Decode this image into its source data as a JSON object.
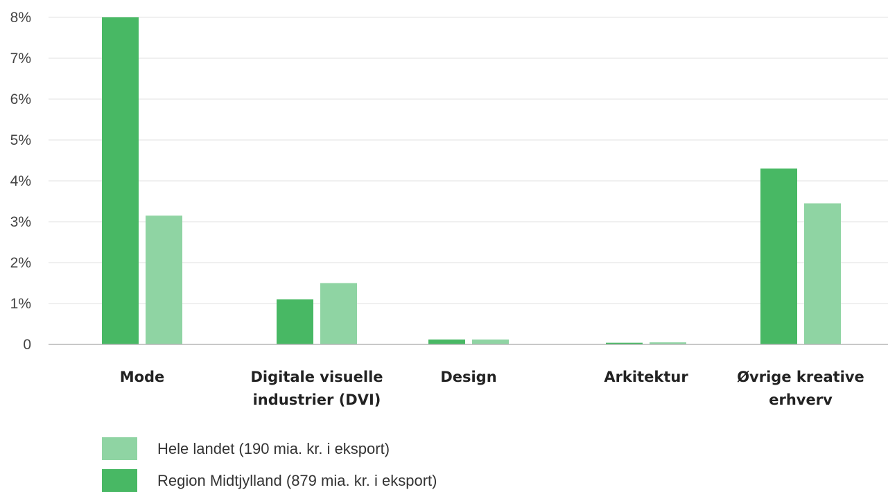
{
  "chart_data": {
    "type": "bar",
    "categories": [
      [
        "Mode"
      ],
      [
        "Digitale visuelle",
        "industrier (DVI)"
      ],
      [
        "Design"
      ],
      [
        "Arkitektur"
      ],
      [
        "Øvrige kreative",
        "erhverv"
      ]
    ],
    "series": [
      {
        "name": "Region Midtjylland (879 mia. kr. i eksport)",
        "color": "#48b864",
        "values": [
          8.0,
          1.1,
          0.12,
          0.04,
          4.3
        ]
      },
      {
        "name": "Hele landet (190 mia. kr. i eksport)",
        "color": "#8fd4a3",
        "values": [
          3.15,
          1.5,
          0.12,
          0.05,
          3.45
        ]
      }
    ],
    "legend_order": [
      1,
      0
    ],
    "ylim": [
      0,
      8
    ],
    "yticks": [
      {
        "value": 0,
        "label": "0"
      },
      {
        "value": 1,
        "label": "1%"
      },
      {
        "value": 2,
        "label": "2%"
      },
      {
        "value": 3,
        "label": "3%"
      },
      {
        "value": 4,
        "label": "4%"
      },
      {
        "value": 5,
        "label": "5%"
      },
      {
        "value": 6,
        "label": "6%"
      },
      {
        "value": 7,
        "label": "7%"
      },
      {
        "value": 8,
        "label": "8%"
      }
    ],
    "grid": true,
    "legend_position": "bottom-left",
    "title": "",
    "xlabel": "",
    "ylabel": ""
  }
}
